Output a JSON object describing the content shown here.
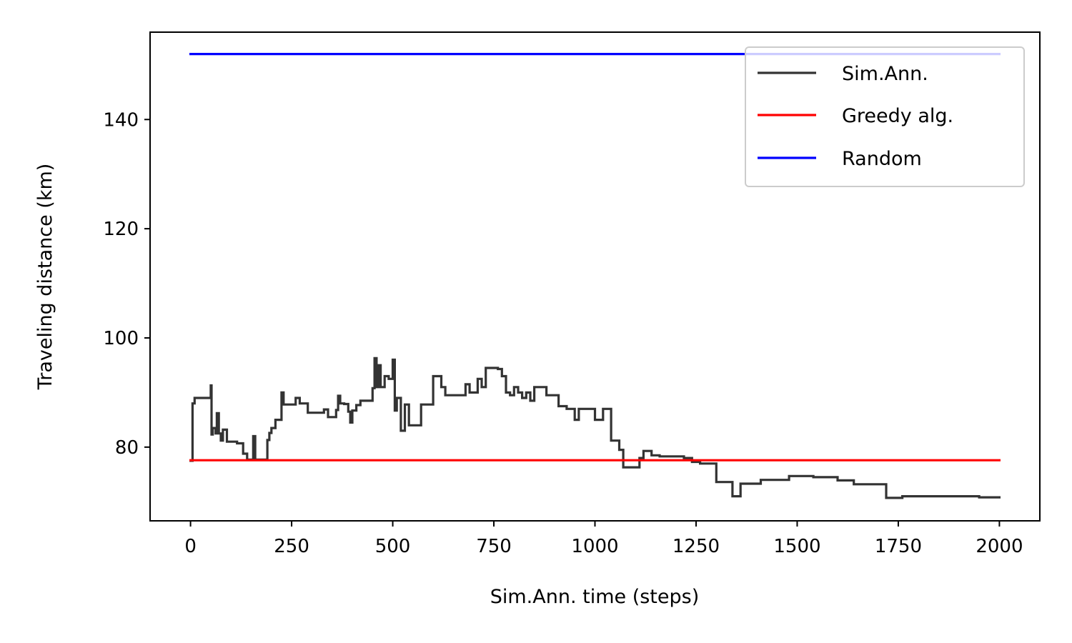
{
  "chart_data": {
    "type": "line",
    "xlabel": "Sim.Ann. time (steps)",
    "ylabel": "Traveling distance (km)",
    "xlim": [
      -100,
      2100
    ],
    "ylim": [
      66.5,
      156
    ],
    "xticks": [
      0,
      250,
      500,
      750,
      1000,
      1250,
      1500,
      1750,
      2000
    ],
    "yticks": [
      80,
      100,
      120,
      140
    ],
    "grid": false,
    "legend_position": "top-right",
    "series": [
      {
        "name": "Sim.Ann.",
        "color": "#333333",
        "style": "step",
        "x": [
          0,
          5,
          10,
          25,
          50,
          52,
          55,
          62,
          65,
          70,
          75,
          80,
          90,
          100,
          110,
          115,
          120,
          130,
          140,
          150,
          155,
          160,
          170,
          180,
          190,
          195,
          200,
          210,
          220,
          225,
          230,
          250,
          260,
          270,
          290,
          300,
          310,
          330,
          340,
          350,
          360,
          365,
          370,
          380,
          390,
          395,
          400,
          410,
          420,
          430,
          440,
          450,
          455,
          460,
          465,
          470,
          480,
          490,
          500,
          505,
          510,
          520,
          530,
          540,
          550,
          560,
          570,
          580,
          590,
          600,
          610,
          620,
          630,
          640,
          650,
          660,
          680,
          690,
          700,
          710,
          720,
          730,
          740,
          750,
          760,
          770,
          780,
          790,
          800,
          810,
          820,
          830,
          840,
          850,
          860,
          870,
          880,
          890,
          900,
          910,
          920,
          930,
          940,
          950,
          960,
          980,
          1000,
          1020,
          1040,
          1060,
          1070,
          1080,
          1100,
          1110,
          1120,
          1140,
          1160,
          1170,
          1180,
          1190,
          1220,
          1240,
          1260,
          1280,
          1300,
          1310,
          1320,
          1340,
          1360,
          1380,
          1400,
          1410,
          1440,
          1460,
          1480,
          1500,
          1520,
          1540,
          1560,
          1600,
          1640,
          1660,
          1700,
          1720,
          1740,
          1760,
          1800,
          1850,
          1900,
          1950,
          2000
        ],
        "y": [
          77.5,
          88.0,
          89.0,
          89.0,
          91.3,
          82.3,
          83.5,
          82.5,
          86.2,
          82.5,
          81.2,
          83.2,
          81.0,
          81.0,
          81.0,
          80.7,
          80.7,
          78.8,
          77.7,
          77.7,
          82.0,
          77.7,
          77.7,
          77.7,
          81.3,
          82.6,
          83.5,
          85.0,
          85.0,
          90.0,
          87.8,
          87.8,
          89.0,
          88.0,
          86.3,
          86.3,
          86.3,
          86.9,
          85.5,
          85.5,
          86.8,
          89.4,
          88.0,
          87.9,
          86.5,
          84.5,
          86.7,
          87.7,
          88.5,
          88.5,
          88.5,
          90.8,
          96.3,
          91.0,
          95.0,
          91.0,
          93.0,
          92.5,
          96.0,
          86.7,
          89.0,
          83.0,
          87.8,
          84.0,
          84.0,
          84.0,
          87.8,
          87.8,
          87.8,
          93.0,
          93.0,
          91.0,
          89.5,
          89.5,
          89.5,
          89.5,
          91.5,
          90.0,
          90.0,
          92.5,
          91.0,
          94.5,
          94.5,
          94.5,
          94.3,
          93.0,
          90.0,
          89.5,
          91.0,
          90.0,
          89.0,
          90.0,
          88.5,
          91.0,
          91.0,
          91.0,
          89.5,
          89.5,
          89.5,
          87.5,
          87.5,
          87.0,
          87.0,
          85.0,
          87.0,
          87.0,
          85.0,
          87.0,
          81.2,
          79.5,
          76.3,
          76.3,
          76.3,
          78.0,
          79.3,
          78.5,
          78.3,
          78.3,
          78.3,
          78.3,
          78.0,
          77.3,
          77.0,
          77.0,
          73.6,
          73.6,
          73.6,
          71.0,
          73.3,
          73.3,
          73.3,
          74.0,
          74.0,
          74.0,
          74.7,
          74.7,
          74.7,
          74.5,
          74.5,
          73.9,
          73.2,
          73.2,
          73.2,
          70.7,
          70.7,
          71.0,
          71.0,
          71.0,
          71.0,
          70.8,
          70.8
        ]
      },
      {
        "name": "Greedy alg.",
        "color": "#ff0000",
        "style": "line",
        "x": [
          0,
          2000
        ],
        "y": [
          77.6,
          77.6
        ]
      },
      {
        "name": "Random",
        "color": "#0000ff",
        "style": "line",
        "x": [
          0,
          2000
        ],
        "y": [
          152,
          152
        ]
      }
    ]
  }
}
